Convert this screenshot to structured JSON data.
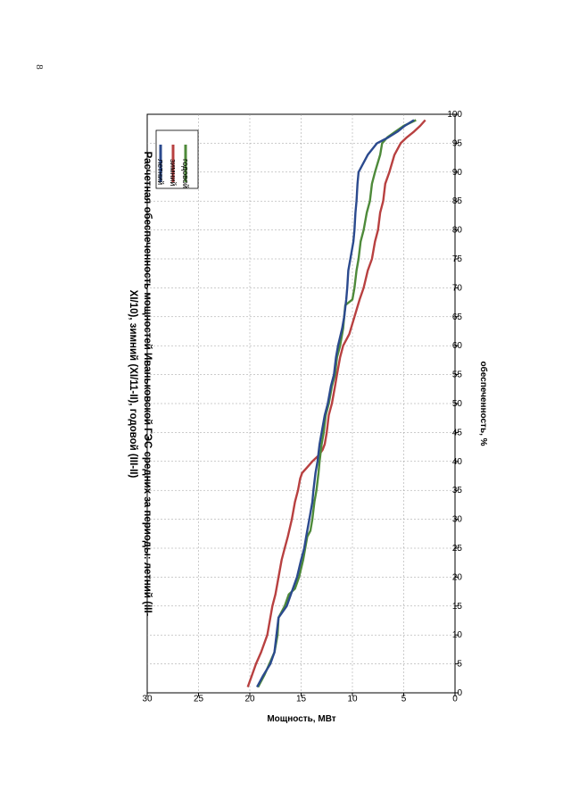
{
  "page": {
    "number": "8"
  },
  "colors": {
    "summer": "#2B4A8E",
    "winter": "#B84040",
    "annual": "#4E8A3A",
    "grid": "#9a9a9a"
  },
  "chart_data": {
    "type": "line",
    "title_line1": "Расчетная обеспеченность мощностей Иваньковской ГЭС средних за периоды: летний (III-",
    "title_line2": "XI/10), зимний (XI/11-II), годовой (III-II)",
    "xlabel": "обеспеченность, %",
    "ylabel": "Мощность, МВт",
    "xlim": [
      0,
      100
    ],
    "ylim": [
      0,
      30
    ],
    "x_ticks": [
      "0",
      "5",
      "10",
      "15",
      "20",
      "25",
      "30",
      "35",
      "40",
      "45",
      "50",
      "55",
      "60",
      "65",
      "70",
      "75",
      "80",
      "85",
      "90",
      "95",
      "100"
    ],
    "y_ticks": [
      "0",
      "5",
      "10",
      "15",
      "20",
      "25",
      "30"
    ],
    "grid": true,
    "legend_position": "top-right",
    "series": [
      {
        "name": "летний",
        "color": "#2B4A8E",
        "x": [
          1,
          3,
          5,
          7,
          10,
          13,
          15,
          17,
          20,
          23,
          25,
          27,
          30,
          33,
          35,
          38,
          40,
          43,
          45,
          48,
          50,
          53,
          55,
          58,
          60,
          63,
          65,
          68,
          70,
          73,
          75,
          78,
          80,
          83,
          85,
          88,
          90,
          93,
          95,
          96,
          97,
          98,
          99
        ],
        "values": [
          19.3,
          18.7,
          18.0,
          17.6,
          17.4,
          17.2,
          16.4,
          16.0,
          15.4,
          15.0,
          14.7,
          14.5,
          14.2,
          13.9,
          13.8,
          13.6,
          13.4,
          13.2,
          13.0,
          12.7,
          12.4,
          12.1,
          11.8,
          11.6,
          11.4,
          11.0,
          10.8,
          10.6,
          10.5,
          10.4,
          10.2,
          9.9,
          9.8,
          9.7,
          9.6,
          9.5,
          9.4,
          8.5,
          7.6,
          6.5,
          5.6,
          4.9,
          4.0
        ]
      },
      {
        "name": "зимний",
        "color": "#B84040",
        "x": [
          1,
          3,
          5,
          7,
          10,
          13,
          15,
          17,
          20,
          23,
          25,
          27,
          30,
          33,
          35,
          37,
          38,
          39,
          40,
          41,
          42,
          43,
          45,
          48,
          50,
          53,
          55,
          58,
          60,
          62,
          65,
          68,
          70,
          73,
          75,
          78,
          80,
          83,
          85,
          88,
          90,
          93,
          95,
          96,
          97,
          98,
          99
        ],
        "values": [
          20.2,
          19.8,
          19.4,
          18.9,
          18.3,
          18.0,
          17.8,
          17.5,
          17.2,
          16.9,
          16.6,
          16.3,
          15.9,
          15.6,
          15.3,
          15.1,
          14.9,
          14.4,
          13.9,
          13.3,
          12.9,
          12.7,
          12.5,
          12.3,
          12.0,
          11.7,
          11.5,
          11.2,
          10.9,
          10.3,
          9.8,
          9.3,
          8.9,
          8.5,
          8.1,
          7.8,
          7.5,
          7.3,
          7.0,
          6.8,
          6.4,
          5.9,
          5.3,
          4.7,
          4.0,
          3.4,
          2.9
        ]
      },
      {
        "name": "годовой",
        "color": "#4E8A3A",
        "x": [
          1,
          3,
          5,
          7,
          10,
          13,
          15,
          17,
          18,
          20,
          23,
          25,
          27,
          28,
          30,
          33,
          35,
          38,
          40,
          43,
          45,
          48,
          50,
          53,
          55,
          58,
          60,
          63,
          65,
          67,
          68,
          70,
          73,
          75,
          78,
          80,
          83,
          85,
          88,
          90,
          93,
          95,
          96,
          97,
          98,
          99
        ],
        "values": [
          19.2,
          18.6,
          18.1,
          17.6,
          17.3,
          17.2,
          16.6,
          16.2,
          15.6,
          15.2,
          14.8,
          14.6,
          14.4,
          14.1,
          13.9,
          13.7,
          13.5,
          13.3,
          13.2,
          13.0,
          12.8,
          12.6,
          12.3,
          12.0,
          11.7,
          11.5,
          11.2,
          10.9,
          10.8,
          10.7,
          10.0,
          9.8,
          9.6,
          9.4,
          9.2,
          8.9,
          8.6,
          8.3,
          8.1,
          7.8,
          7.3,
          7.1,
          6.6,
          5.8,
          5.0,
          3.8
        ]
      }
    ]
  }
}
